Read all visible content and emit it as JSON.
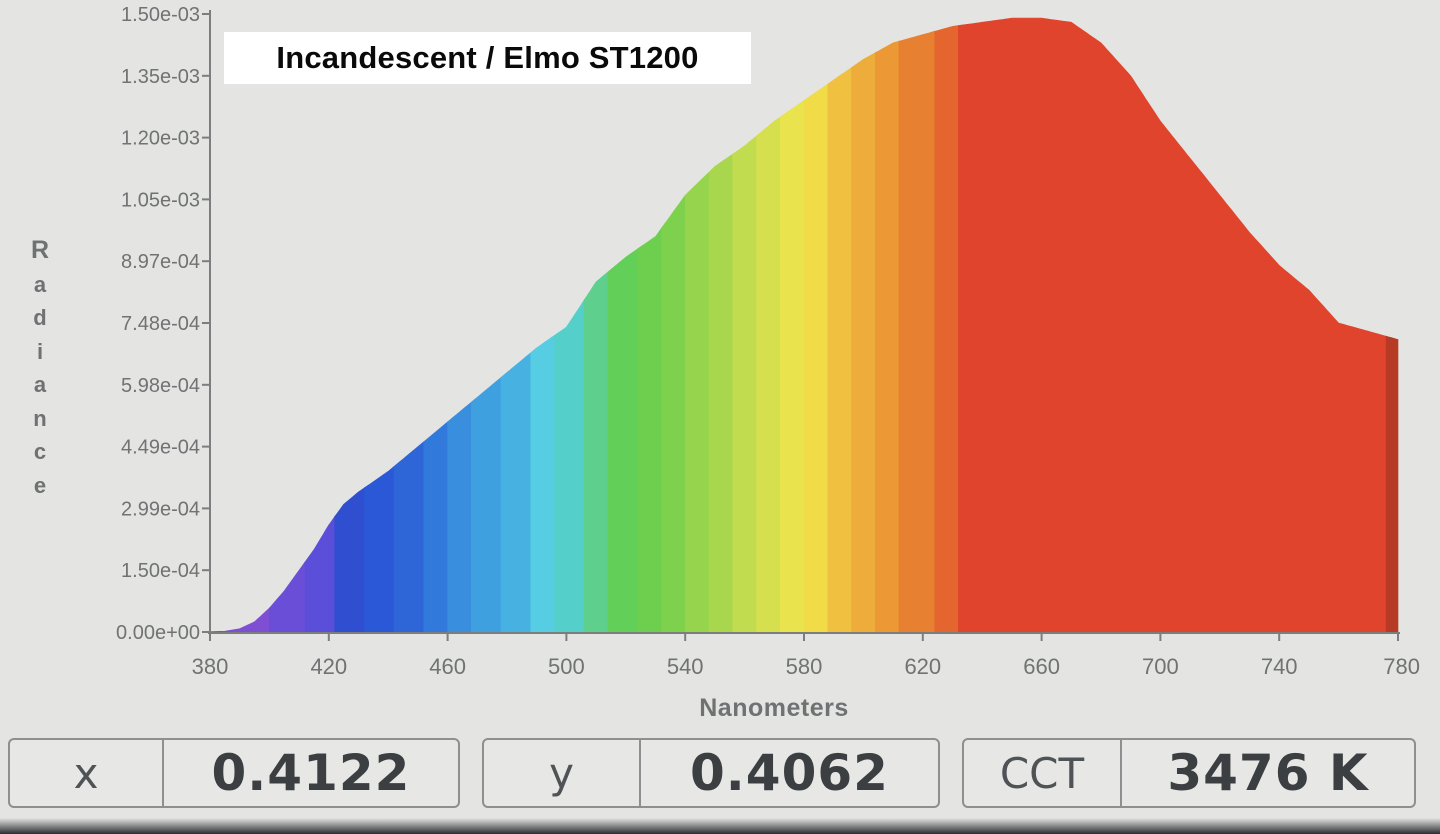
{
  "chart_data": {
    "type": "area",
    "title": "",
    "overlay_label": "Incandescent / Elmo ST1200",
    "xlabel": "Nanometers",
    "ylabel": "Radiance",
    "xlim": [
      380,
      780
    ],
    "ylim": [
      0,
      0.0015
    ],
    "x_ticks": [
      "380",
      "420",
      "460",
      "500",
      "540",
      "580",
      "620",
      "660",
      "700",
      "740",
      "780"
    ],
    "y_ticks": [
      "0.00e+00",
      "1.50e-04",
      "2.99e-04",
      "4.49e-04",
      "5.98e-04",
      "7.48e-04",
      "8.97e-04",
      "1.05e-03",
      "1.20e-03",
      "1.35e-03",
      "1.50e-03"
    ],
    "grid": false,
    "legend": "none",
    "x": [
      380,
      385,
      390,
      395,
      400,
      405,
      410,
      415,
      420,
      425,
      430,
      440,
      450,
      460,
      470,
      480,
      490,
      500,
      510,
      520,
      530,
      540,
      550,
      560,
      570,
      580,
      590,
      600,
      610,
      620,
      630,
      640,
      650,
      660,
      670,
      680,
      690,
      700,
      710,
      720,
      730,
      740,
      750,
      760,
      770,
      780
    ],
    "y": [
      1e-06,
      2e-06,
      8e-06,
      2.5e-05,
      5.8e-05,
      0.0001,
      0.00015,
      0.0002,
      0.00026,
      0.00031,
      0.00034,
      0.00039,
      0.00045,
      0.00051,
      0.00057,
      0.00063,
      0.00069,
      0.00074,
      0.00085,
      0.00091,
      0.00096,
      0.00106,
      0.00113,
      0.00118,
      0.00124,
      0.00129,
      0.00134,
      0.00139,
      0.00143,
      0.00145,
      0.00147,
      0.00148,
      0.00149,
      0.00149,
      0.00148,
      0.00143,
      0.00135,
      0.00124,
      0.00115,
      0.00106,
      0.00097,
      0.00089,
      0.00083,
      0.00075,
      0.00073,
      0.00071
    ],
    "spectrum_bands": [
      {
        "from": 380,
        "to": 400,
        "color": "#7e4fd2"
      },
      {
        "from": 400,
        "to": 412,
        "color": "#6a4ed8"
      },
      {
        "from": 412,
        "to": 422,
        "color": "#5b4ed8"
      },
      {
        "from": 422,
        "to": 432,
        "color": "#2f4fd0"
      },
      {
        "from": 432,
        "to": 442,
        "color": "#2b58d6"
      },
      {
        "from": 442,
        "to": 452,
        "color": "#2e66d8"
      },
      {
        "from": 452,
        "to": 460,
        "color": "#3279dc"
      },
      {
        "from": 460,
        "to": 468,
        "color": "#3a8ede"
      },
      {
        "from": 468,
        "to": 478,
        "color": "#3fa0e0"
      },
      {
        "from": 478,
        "to": 488,
        "color": "#47b2e2"
      },
      {
        "from": 488,
        "to": 496,
        "color": "#56cde2"
      },
      {
        "from": 496,
        "to": 506,
        "color": "#55cfca"
      },
      {
        "from": 506,
        "to": 514,
        "color": "#5ecf8c"
      },
      {
        "from": 514,
        "to": 524,
        "color": "#62cf58"
      },
      {
        "from": 524,
        "to": 532,
        "color": "#6ecf4e"
      },
      {
        "from": 532,
        "to": 540,
        "color": "#7ed14c"
      },
      {
        "from": 540,
        "to": 548,
        "color": "#95d44c"
      },
      {
        "from": 548,
        "to": 556,
        "color": "#a8d74e"
      },
      {
        "from": 556,
        "to": 564,
        "color": "#c2dc50"
      },
      {
        "from": 564,
        "to": 572,
        "color": "#d6df4e"
      },
      {
        "from": 572,
        "to": 580,
        "color": "#e9e34e"
      },
      {
        "from": 580,
        "to": 588,
        "color": "#f1dc48"
      },
      {
        "from": 588,
        "to": 596,
        "color": "#f0c040"
      },
      {
        "from": 596,
        "to": 604,
        "color": "#eeac3a"
      },
      {
        "from": 604,
        "to": 612,
        "color": "#ec9834"
      },
      {
        "from": 612,
        "to": 624,
        "color": "#e78030"
      },
      {
        "from": 624,
        "to": 632,
        "color": "#e4662e"
      },
      {
        "from": 632,
        "to": 776,
        "color": "#e0442c"
      },
      {
        "from": 776,
        "to": 780,
        "color": "#b73a24"
      }
    ]
  },
  "readouts": [
    {
      "label": "x",
      "value": "0.4122"
    },
    {
      "label": "y",
      "value": "0.4062"
    },
    {
      "label": "CCT",
      "value": "3476 K"
    }
  ],
  "colors": {
    "background": "#e4e5e2",
    "axis": "#7b7d7f",
    "tick_label": "#707274"
  }
}
